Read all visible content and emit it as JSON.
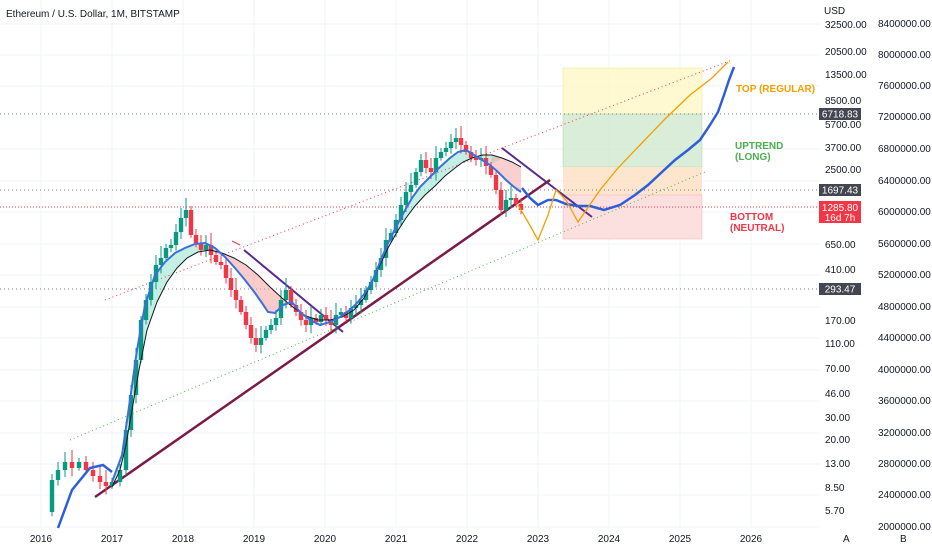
{
  "chart_data": {
    "type": "candlestick",
    "title": "Ethereum / U.S. Dollar, 1M, BITSTAMP",
    "currency_label": "USD",
    "x_ticks": [
      "2016",
      "2017",
      "2018",
      "2019",
      "2020",
      "2021",
      "2022",
      "2023",
      "2024",
      "2025",
      "2026"
    ],
    "left_axis_ticks": [
      "32500.00",
      "20500.00",
      "13500.00",
      "8500.00",
      "5700.00",
      "3700.00",
      "2500.00",
      "1697.43",
      "1285.80",
      "650.00",
      "410.00",
      "293.47",
      "170.00",
      "110.00",
      "70.00",
      "46.00",
      "30.00",
      "20.00",
      "13.00",
      "8.50",
      "5.70"
    ],
    "right_axis_ticks": [
      "8400000.00",
      "8000000.00",
      "7600000.00",
      "7200000.00",
      "6800000.00",
      "6400000.00",
      "6000000.00",
      "5600000.00",
      "5200000.00",
      "4800000.00",
      "4400000.00",
      "4000000.00",
      "3600000.00",
      "3200000.00",
      "2800000.00",
      "2400000.00",
      "2000000.00"
    ],
    "price_badges": [
      {
        "value": "6718.83",
        "kind": "level"
      },
      {
        "value": "1697.43",
        "kind": "level"
      },
      {
        "value": "1285.80",
        "sub": "16d 7h",
        "kind": "current"
      },
      {
        "value": "293.47",
        "kind": "level"
      }
    ],
    "annotations": [
      {
        "text": "TOP (REGULAR)",
        "color": "#f59f00"
      },
      {
        "text": "UPTREND",
        "text2": "(LONG)",
        "color": "#4caf50"
      },
      {
        "text": "BOTTOM",
        "text2": "(NEUTRAL)",
        "color": "#f23645"
      }
    ],
    "footer_buttons": [
      "A",
      "B"
    ],
    "colors": {
      "up": "#089981",
      "down": "#f23645",
      "ma_fast": "#3d6fdc",
      "ma_slow": "#131722",
      "projection": "#2f5fd8",
      "orange": "#f59f00",
      "trend_main": "#7b1b47",
      "trend_purple": "#5b2a8c"
    }
  }
}
